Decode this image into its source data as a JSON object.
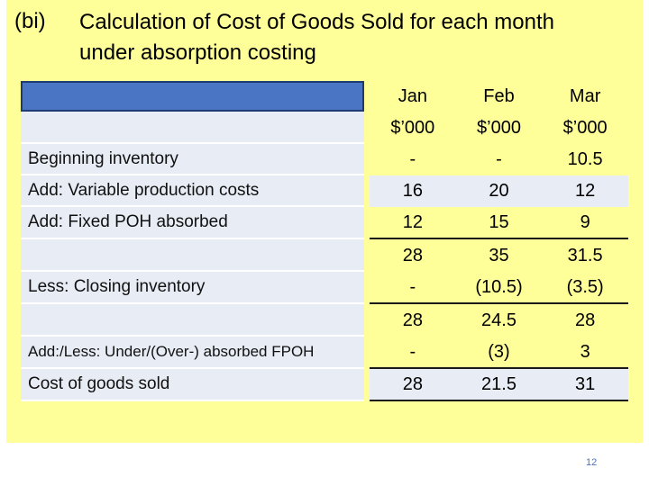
{
  "title": {
    "label": "(bi)",
    "line1": "Calculation of Cost of Goods Sold for each month",
    "line2": "under absorption costing"
  },
  "columns": [
    "Jan",
    "Feb",
    "Mar"
  ],
  "units": [
    "$’000",
    "$’000",
    "$’000"
  ],
  "rows": [
    {
      "label": "Beginning inventory",
      "values": [
        "-",
        "-",
        "10.5"
      ]
    },
    {
      "label": "Add: Variable production costs",
      "values": [
        "16",
        "20",
        "12"
      ]
    },
    {
      "label": "Add: Fixed POH absorbed",
      "values": [
        "12",
        "15",
        "9"
      ]
    },
    {
      "label": "",
      "values": [
        "28",
        "35",
        "31.5"
      ]
    },
    {
      "label": "Less: Closing inventory",
      "values": [
        "-",
        "(10.5)",
        "(3.5)"
      ]
    },
    {
      "label": "",
      "values": [
        "28",
        "24.5",
        "28"
      ]
    },
    {
      "label": "Add:/Less: Under/(Over-) absorbed FPOH",
      "values": [
        "-",
        "(3)",
        "3"
      ]
    },
    {
      "label": "Cost of goods sold",
      "values": [
        "28",
        "21.5",
        "31"
      ]
    }
  ],
  "page_number": "12",
  "colors": {
    "background": "#ffff99",
    "header_blue": "#4a74c4",
    "row_shade": "#e8ecf5"
  }
}
